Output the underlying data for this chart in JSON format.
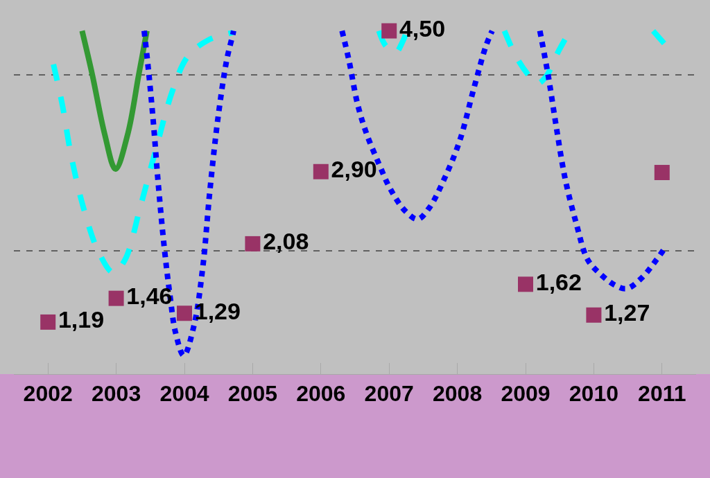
{
  "chart_data": {
    "type": "line",
    "x": [
      2002,
      2003,
      2004,
      2005,
      2006,
      2007,
      2008,
      2009,
      2010,
      2011
    ],
    "xlim": [
      2001.5,
      2011.5
    ],
    "xticks": [
      2002,
      2003,
      2004,
      2005,
      2006,
      2007,
      2008,
      2009,
      2010,
      2011
    ],
    "tick_labels": "x",
    "ref_lines": [
      {
        "axis": "y",
        "value": 2,
        "color": "#000000",
        "line_style": "dashed"
      },
      {
        "axis": "y",
        "value": 4,
        "color": "#000000",
        "line_style": "dashed"
      }
    ],
    "series": [
      {
        "color": "#339933",
        "line_style": "solid",
        "marker": "none",
        "x": [
          2002.5,
          2002.65,
          2002.83,
          2002.99,
          2003.17,
          2003.33,
          2003.45
        ],
        "values": [
          4.5,
          4.0,
          3.33,
          2.93,
          3.33,
          4.0,
          4.5
        ]
      },
      {
        "color": "#00ffff",
        "line_style": "dashed",
        "marker": "none",
        "x": [
          2002.08,
          2002.21,
          2002.34,
          2002.52,
          2002.74,
          2002.96,
          2003.13,
          2003.35,
          2003.57,
          2003.83,
          2004.05,
          2004.36,
          2004.71,
          2005.8,
          2006.85,
          2006.95,
          2007.09,
          2007.2,
          2007.26,
          2008,
          2008.69,
          2008.86,
          2009.04,
          2009.17,
          2009.3,
          2009.47,
          2009.65,
          2010.3,
          2010.87,
          2011.04
        ],
        "values": [
          4.12,
          3.66,
          3.08,
          2.49,
          1.99,
          1.75,
          1.9,
          2.49,
          3.12,
          3.83,
          4.21,
          4.4,
          4.48,
          null,
          4.5,
          4.33,
          4.25,
          4.38,
          4.5,
          null,
          4.5,
          4.21,
          4.0,
          3.9,
          3.98,
          4.25,
          4.5,
          null,
          4.5,
          4.35
        ]
      },
      {
        "color": "#0000ff",
        "line_style": "dotted",
        "marker": "none",
        "x": [
          2003.41,
          2003.48,
          2003.55,
          2003.61,
          2003.7,
          2003.79,
          2003.87,
          2003.99,
          2004.14,
          2004.27,
          2004.37,
          2004.49,
          2004.62,
          2004.71,
          2004.72,
          2005.5,
          2006.31,
          2006.41,
          2006.54,
          2006.67,
          2006.85,
          2007.02,
          2007.24,
          2007.42,
          2007.59,
          2007.81,
          2008.03,
          2008.25,
          2008.42,
          2008.51,
          2008.9,
          2009.21,
          2009.33,
          2009.45,
          2009.58,
          2009.74,
          2009.91,
          2010.09,
          2010.31,
          2010.48,
          2010.7,
          2010.92,
          2011.04
        ],
        "values": [
          4.5,
          4.0,
          3.41,
          2.82,
          2.07,
          1.48,
          1.07,
          0.81,
          1.15,
          1.82,
          2.66,
          3.5,
          4.17,
          4.46,
          4.5,
          null,
          4.5,
          4.17,
          3.66,
          3.33,
          2.99,
          2.7,
          2.45,
          2.36,
          2.49,
          2.82,
          3.24,
          3.87,
          4.33,
          4.5,
          null,
          4.5,
          4.0,
          3.41,
          2.82,
          2.32,
          1.9,
          1.74,
          1.61,
          1.57,
          1.69,
          1.9,
          2.03
        ]
      },
      {
        "type": "scatter",
        "color": "#993366",
        "marker": "square",
        "values": [
          1.19,
          1.46,
          1.29,
          2.08,
          2.9,
          4.5,
          null,
          1.62,
          1.27,
          2.89
        ],
        "value_labels": [
          "1,19",
          "1,46",
          "1,29",
          "2,08",
          "2,90",
          "4,50",
          null,
          "1,62",
          "1,27",
          null
        ]
      }
    ]
  }
}
